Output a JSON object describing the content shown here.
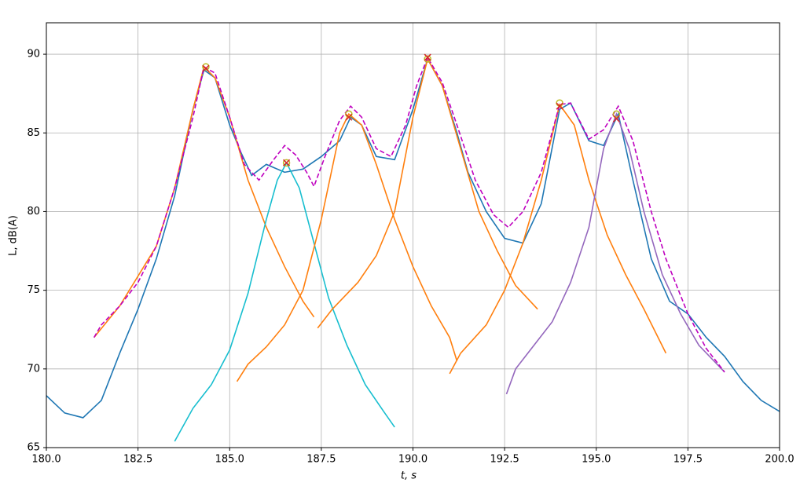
{
  "chart_data": {
    "type": "line",
    "x_label": "t, s",
    "y_label": "L, dB(A)",
    "xlim": [
      180,
      200
    ],
    "ylim": [
      65,
      92
    ],
    "xticks": [
      {
        "value": 180,
        "label": "180.0"
      },
      182.5,
      {
        "value": 185,
        "label": "185.0"
      },
      187.5,
      {
        "value": 190,
        "label": "190.0"
      },
      192.5,
      {
        "value": 195,
        "label": "195.0"
      },
      197.5,
      {
        "value": 200,
        "label": "200.0"
      }
    ],
    "yticks": [
      65,
      70,
      75,
      80,
      85,
      90
    ],
    "grid": true,
    "series": [
      {
        "color": "#1f77b4",
        "style": "solid",
        "x": [
          180.0,
          180.5,
          181.0,
          181.5,
          182.0,
          182.5,
          183.0,
          183.5,
          184.0,
          184.3,
          184.6,
          185.0,
          185.3,
          185.6,
          186.0,
          186.5,
          187.0,
          187.5,
          188.0,
          188.3,
          188.6,
          189.0,
          189.5,
          190.0,
          190.4,
          190.8,
          191.2,
          191.5,
          192.0,
          192.5,
          193.0,
          193.5,
          194.0,
          194.3,
          194.8,
          195.2,
          195.6,
          196.0,
          196.5,
          197.0,
          197.5,
          198.0,
          198.5,
          199.0,
          199.5,
          200.0
        ],
        "values": [
          68.3,
          67.2,
          66.9,
          68.0,
          71.0,
          73.8,
          77.0,
          81.0,
          86.5,
          89.0,
          88.5,
          85.5,
          83.8,
          82.3,
          83.0,
          82.5,
          82.7,
          83.5,
          84.5,
          86.0,
          85.5,
          83.5,
          83.3,
          86.5,
          89.7,
          88.0,
          85.0,
          82.5,
          80.0,
          78.3,
          78.0,
          80.5,
          86.5,
          86.9,
          84.5,
          84.2,
          86.2,
          82.0,
          77.0,
          74.3,
          73.5,
          72.0,
          70.8,
          69.2,
          68.0,
          67.3
        ]
      },
      {
        "color": "#ff7f0e",
        "style": "solid",
        "x": [
          181.3,
          182.0,
          183.0,
          183.5,
          184.0,
          184.3,
          184.6,
          185.0,
          185.5,
          186.0,
          186.5,
          187.0,
          187.3
        ],
        "values": [
          72.0,
          74.0,
          77.8,
          81.5,
          86.5,
          89.2,
          88.5,
          86.0,
          82.0,
          79.0,
          76.5,
          74.3,
          73.3
        ]
      },
      {
        "color": "#17becf",
        "style": "solid",
        "x": [
          183.5,
          184.0,
          184.5,
          185.0,
          185.5,
          186.0,
          186.3,
          186.55,
          186.9,
          187.3,
          187.7,
          188.2,
          188.7,
          189.2,
          189.5
        ],
        "values": [
          65.4,
          67.5,
          69.0,
          71.2,
          74.8,
          79.5,
          82.0,
          83.1,
          81.5,
          78.0,
          74.5,
          71.5,
          69.0,
          67.3,
          66.3
        ]
      },
      {
        "color": "#ff7f0e",
        "style": "solid",
        "x": [
          185.2,
          185.5,
          186.0,
          186.5,
          187.0,
          187.5,
          188.0,
          188.25,
          188.6,
          189.0,
          189.5,
          190.0,
          190.5,
          191.0,
          191.2
        ],
        "values": [
          69.2,
          70.3,
          71.4,
          72.8,
          75.0,
          79.5,
          85.0,
          86.2,
          85.5,
          83.0,
          79.5,
          76.5,
          74.0,
          72.0,
          70.5
        ]
      },
      {
        "color": "#ff7f0e",
        "style": "solid",
        "x": [
          187.4,
          187.8,
          188.5,
          189.0,
          189.5,
          190.0,
          190.4,
          190.8,
          191.3,
          191.8,
          192.3,
          192.8,
          193.4
        ],
        "values": [
          72.6,
          73.8,
          75.5,
          77.2,
          80.0,
          86.0,
          89.7,
          88.0,
          84.0,
          80.0,
          77.5,
          75.3,
          73.8
        ]
      },
      {
        "color": "#ff7f0e",
        "style": "solid",
        "x": [
          191.0,
          191.3,
          192.0,
          192.5,
          193.0,
          193.5,
          194.0,
          194.4,
          194.8,
          195.3,
          195.8,
          196.3,
          196.9
        ],
        "values": [
          69.7,
          71.0,
          72.8,
          75.0,
          78.0,
          82.0,
          86.8,
          85.5,
          82.0,
          78.5,
          76.0,
          73.8,
          71.0
        ]
      },
      {
        "color": "#9467bd",
        "style": "solid",
        "x": [
          192.55,
          192.8,
          193.3,
          193.8,
          194.3,
          194.8,
          195.2,
          195.55,
          195.9,
          196.3,
          196.8,
          197.3,
          197.8,
          198.5
        ],
        "values": [
          68.4,
          70.0,
          71.5,
          73.0,
          75.5,
          79.0,
          84.0,
          86.2,
          84.0,
          80.0,
          76.0,
          73.5,
          71.5,
          69.8
        ]
      },
      {
        "color": "#bf00bf",
        "style": "dashed",
        "x": [
          181.3,
          181.5,
          182.0,
          182.5,
          183.0,
          183.5,
          184.0,
          184.3,
          184.6,
          185.0,
          185.4,
          185.8,
          186.2,
          186.5,
          186.8,
          187.1,
          187.3,
          187.6,
          188.0,
          188.3,
          188.6,
          189.0,
          189.4,
          189.8,
          190.1,
          190.4,
          190.8,
          191.2,
          191.7,
          192.2,
          192.6,
          193.0,
          193.5,
          194.0,
          194.3,
          194.8,
          195.2,
          195.6,
          196.0,
          196.5,
          196.9,
          197.5,
          198.0,
          198.5
        ],
        "values": [
          72.0,
          72.8,
          74.0,
          75.5,
          77.8,
          81.5,
          86.0,
          89.2,
          88.8,
          86.0,
          83.0,
          82.0,
          83.3,
          84.2,
          83.6,
          82.5,
          81.6,
          83.5,
          85.8,
          86.7,
          86.0,
          84.0,
          83.5,
          85.5,
          88.0,
          89.8,
          88.2,
          85.5,
          82.0,
          79.8,
          79.0,
          80.0,
          82.5,
          86.8,
          86.9,
          84.6,
          85.2,
          86.7,
          84.5,
          80.0,
          77.0,
          73.5,
          71.3,
          69.8
        ]
      },
      {
        "color": "#bcbd22",
        "marker": "circle",
        "x": [
          184.35,
          186.55,
          188.25,
          190.4,
          194.0,
          195.55
        ],
        "values": [
          89.2,
          83.1,
          86.2,
          89.7,
          86.9,
          86.2
        ]
      },
      {
        "color": "#d62728",
        "marker": "x",
        "x": [
          184.35,
          186.55,
          188.25,
          190.4,
          194.0,
          195.55
        ],
        "values": [
          89.1,
          83.1,
          86.0,
          89.8,
          86.7,
          85.9
        ]
      }
    ]
  }
}
